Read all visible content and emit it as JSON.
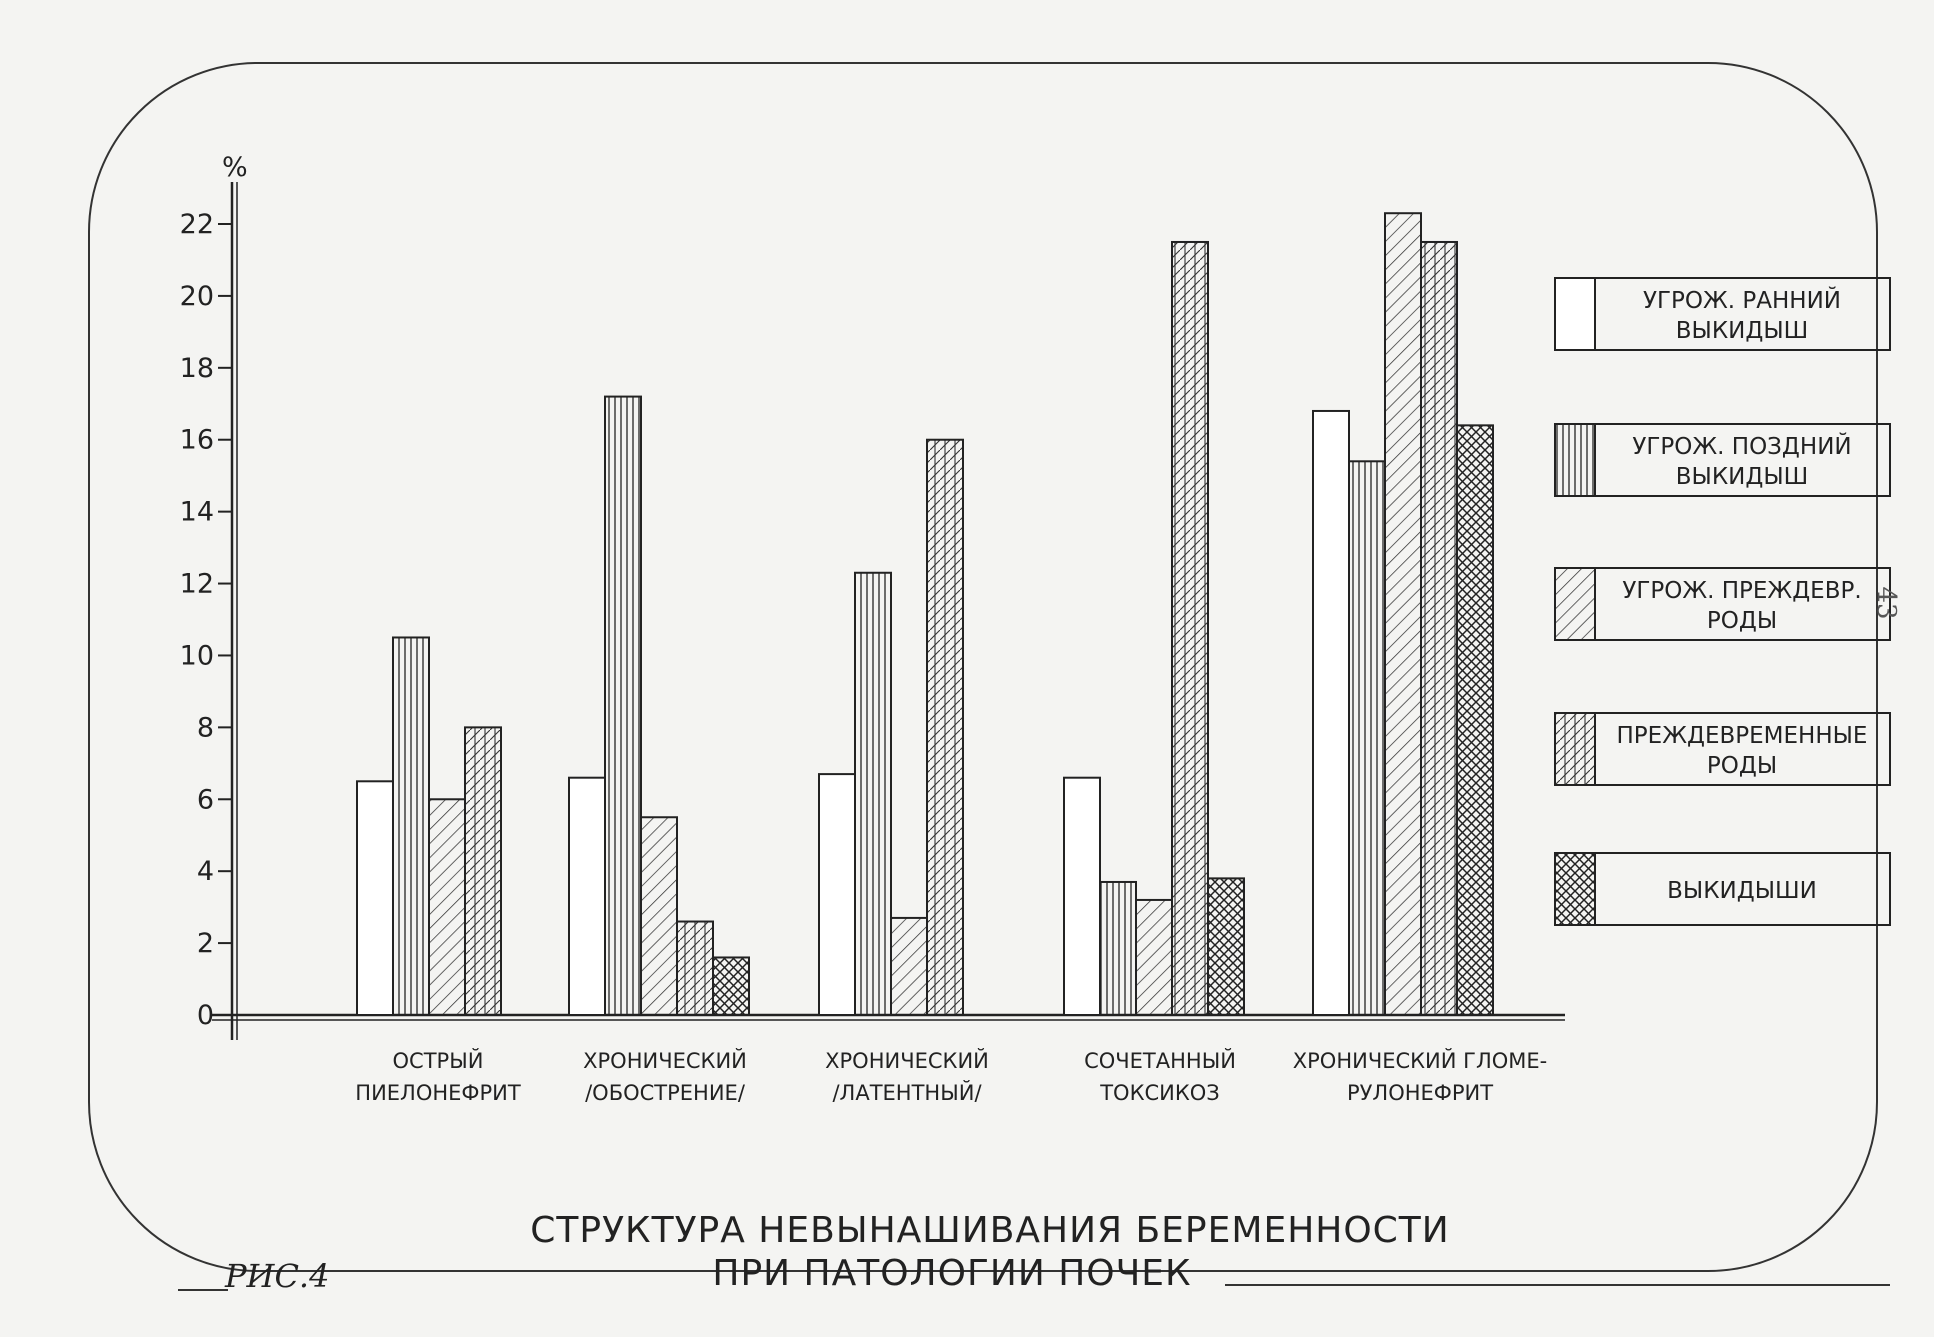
{
  "figure_label": "РИС.4",
  "page_number": "43",
  "chart_data": {
    "type": "bar",
    "title": "СТРУКТУРА НЕВЫНАШИВАНИЯ БЕРЕМЕННОСТИ",
    "subtitle": "ПРИ ПАТОЛОГИИ ПОЧЕК",
    "ylabel": "%",
    "xlabel": "",
    "ylim": [
      0,
      22
    ],
    "yticks": [
      0,
      2,
      4,
      6,
      8,
      10,
      12,
      14,
      16,
      18,
      20,
      22
    ],
    "categories": [
      [
        "ОСТРЫЙ",
        "ПИЕЛОНЕФРИТ"
      ],
      [
        "ХРОНИЧЕСКИЙ",
        "/ОБОСТРЕНИЕ/"
      ],
      [
        "ХРОНИЧЕСКИЙ",
        "/ЛАТЕНТНЫЙ/"
      ],
      [
        "СОЧЕТАННЫЙ",
        "ТОКСИКОЗ"
      ],
      [
        "ХРОНИЧЕСКИЙ ГЛОМЕ-",
        "РУЛОНЕФРИТ"
      ]
    ],
    "legend_position": "right",
    "series": [
      {
        "name": [
          "УГРОЖ. РАННИЙ",
          "ВЫКИДЫШ"
        ],
        "pattern": "blank",
        "values": [
          6.5,
          6.6,
          6.7,
          6.6,
          16.8
        ]
      },
      {
        "name": [
          "УГРОЖ. ПОЗДНИЙ",
          "ВЫКИДЫШ"
        ],
        "pattern": "vertical",
        "values": [
          10.5,
          17.2,
          12.3,
          3.7,
          15.4
        ]
      },
      {
        "name": [
          "УГРОЖ. ПРЕЖДЕВР.",
          "РОДЫ"
        ],
        "pattern": "diagonal",
        "values": [
          6.0,
          5.5,
          2.7,
          3.2,
          22.3
        ]
      },
      {
        "name": [
          "ПРЕЖДЕВРЕМЕННЫЕ",
          "РОДЫ"
        ],
        "pattern": "vertical-diagonal",
        "values": [
          8.0,
          2.6,
          16.0,
          21.5,
          21.5
        ]
      },
      {
        "name": [
          "ВЫКИДЫШИ"
        ],
        "pattern": "crosshatch",
        "values": [
          null,
          1.6,
          null,
          3.8,
          16.4
        ]
      }
    ]
  }
}
